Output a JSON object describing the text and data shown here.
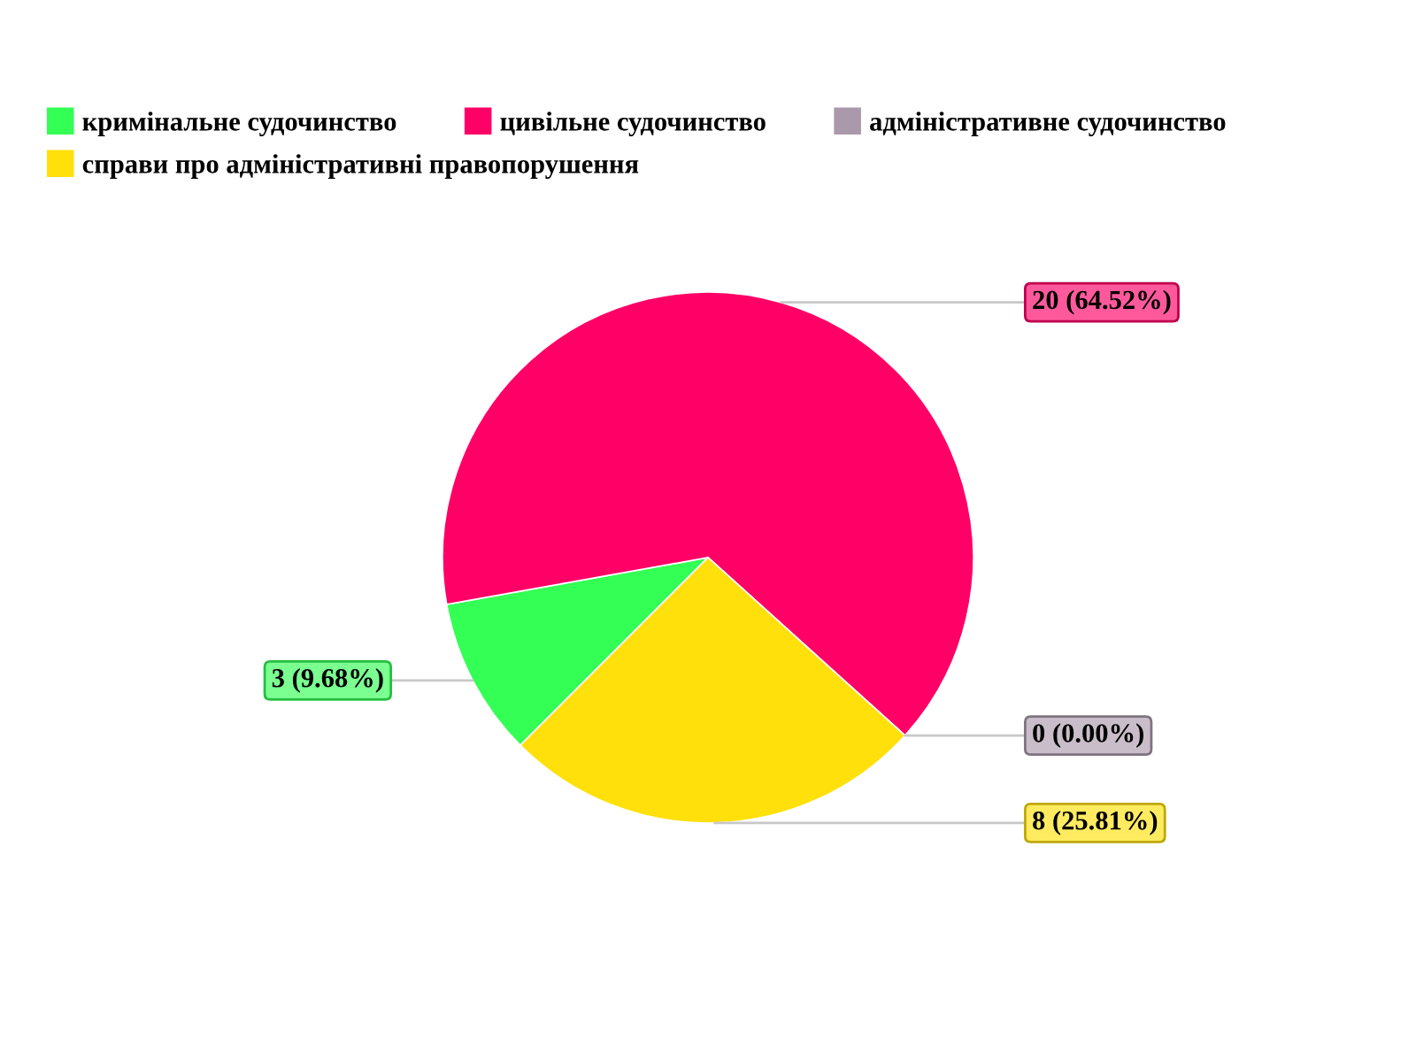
{
  "chart_data": {
    "type": "pie",
    "categories": [
      "кримінальне судочинство",
      "цивільне судочинство",
      "адміністративне судочинство",
      "справи про адміністративні правопорушення"
    ],
    "values": [
      3,
      20,
      0,
      8
    ],
    "colors": [
      "#33ff55",
      "#ff0066",
      "#aa99aa",
      "#ffe00a"
    ],
    "value_labels": [
      "3 (9.68%)",
      "20 (64.52%)",
      "0 (0.00%)",
      "8 (25.81%)"
    ],
    "legend": "top"
  }
}
